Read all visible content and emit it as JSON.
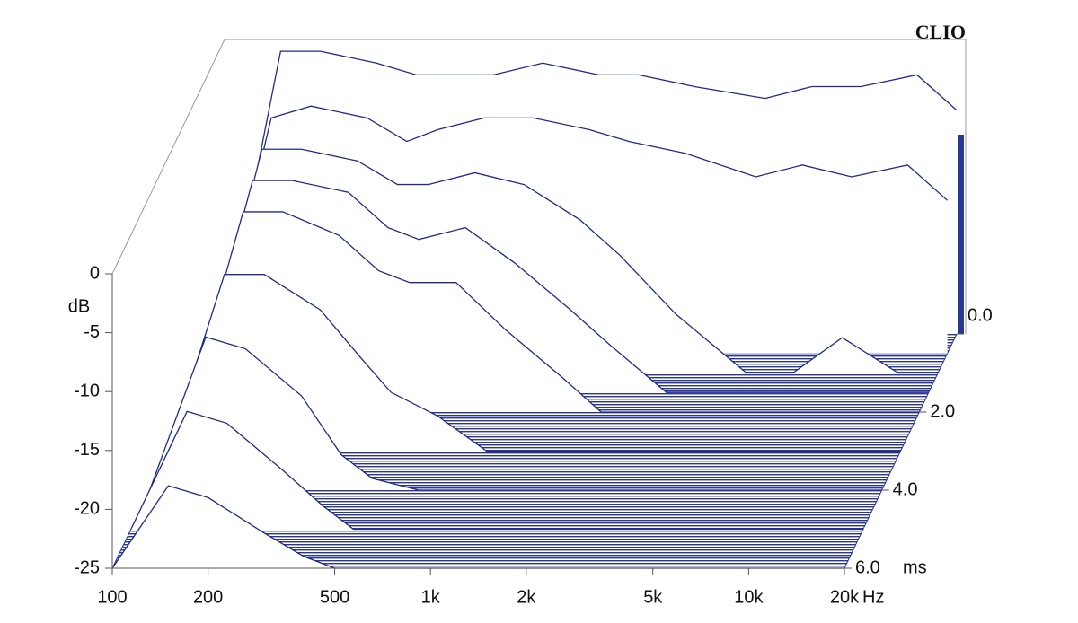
{
  "chart_data": {
    "type": "waterfall",
    "brand": "CLIO",
    "x_unit": "Hz",
    "y_unit": "dB",
    "z_unit": "ms",
    "xlim": [
      100,
      20000
    ],
    "log_x": true,
    "xticks": [
      100,
      200,
      500,
      {
        "value": 1000,
        "label": "1k"
      },
      {
        "value": 2000,
        "label": "2k"
      },
      {
        "value": 5000,
        "label": "5k"
      },
      {
        "value": 10000,
        "label": "10k"
      },
      {
        "value": 20000,
        "label": "20k"
      }
    ],
    "ylim": [
      -25,
      0
    ],
    "yticks": [
      0,
      -5,
      -10,
      -15,
      -20,
      -25
    ],
    "zlim": [
      0,
      6
    ],
    "zticks": [
      {
        "value": 0,
        "label": "0.0"
      },
      {
        "value": 2,
        "label": "2.0"
      },
      {
        "value": 4,
        "label": "4.0"
      },
      {
        "value": 6,
        "label": "6.0"
      }
    ],
    "color": "#1f2a8a",
    "x": [
      100,
      150,
      200,
      300,
      400,
      500,
      700,
      1000,
      1500,
      2000,
      3000,
      5000,
      7000,
      10000,
      15000,
      20000
    ],
    "series": [
      {
        "time": 0,
        "values": [
          -25,
          -1,
          -1,
          -2,
          -3,
          -3,
          -3,
          -2,
          -3,
          -3,
          -4,
          -5,
          -4,
          -4,
          -3,
          -6
        ]
      },
      {
        "time": 0.5,
        "values": [
          -25,
          -5,
          -4,
          -5,
          -7,
          -6,
          -5,
          -5,
          -6,
          -7,
          -8,
          -10,
          -9,
          -10,
          -9,
          -12
        ]
      },
      {
        "time": 1,
        "values": [
          -25,
          -6,
          -6,
          -7,
          -9,
          -9,
          -8,
          -9,
          -12,
          -15,
          -20,
          -25,
          -25,
          -22,
          -25,
          -25
        ]
      },
      {
        "time": 1.5,
        "values": [
          -25,
          -7,
          -7,
          -8,
          -11,
          -12,
          -11,
          -14,
          -18,
          -21,
          -25,
          -25,
          -25,
          -25,
          -25,
          -25
        ]
      },
      {
        "time": 2,
        "values": [
          -25,
          -8,
          -8,
          -10,
          -13,
          -14,
          -14,
          -18,
          -22,
          -25,
          -25,
          -25,
          -25,
          -25,
          -25,
          -25
        ]
      },
      {
        "time": 3,
        "values": [
          -25,
          -10,
          -10,
          -13,
          -17,
          -20,
          -22,
          -25,
          -25,
          -25,
          -25,
          -25,
          -25,
          -25,
          -25,
          -25
        ]
      },
      {
        "time": 4,
        "values": [
          -25,
          -12,
          -13,
          -17,
          -22,
          -24,
          -25,
          -25,
          -25,
          -25,
          -25,
          -25,
          -25,
          -25,
          -25,
          -25
        ]
      },
      {
        "time": 5,
        "values": [
          -25,
          -15,
          -16,
          -20,
          -23,
          -25,
          -25,
          -25,
          -25,
          -25,
          -25,
          -25,
          -25,
          -25,
          -25,
          -25
        ]
      },
      {
        "time": 6,
        "values": [
          -25,
          -18,
          -19,
          -22,
          -24,
          -25,
          -25,
          -25,
          -25,
          -25,
          -25,
          -25,
          -25,
          -25,
          -25,
          -25
        ]
      }
    ]
  }
}
